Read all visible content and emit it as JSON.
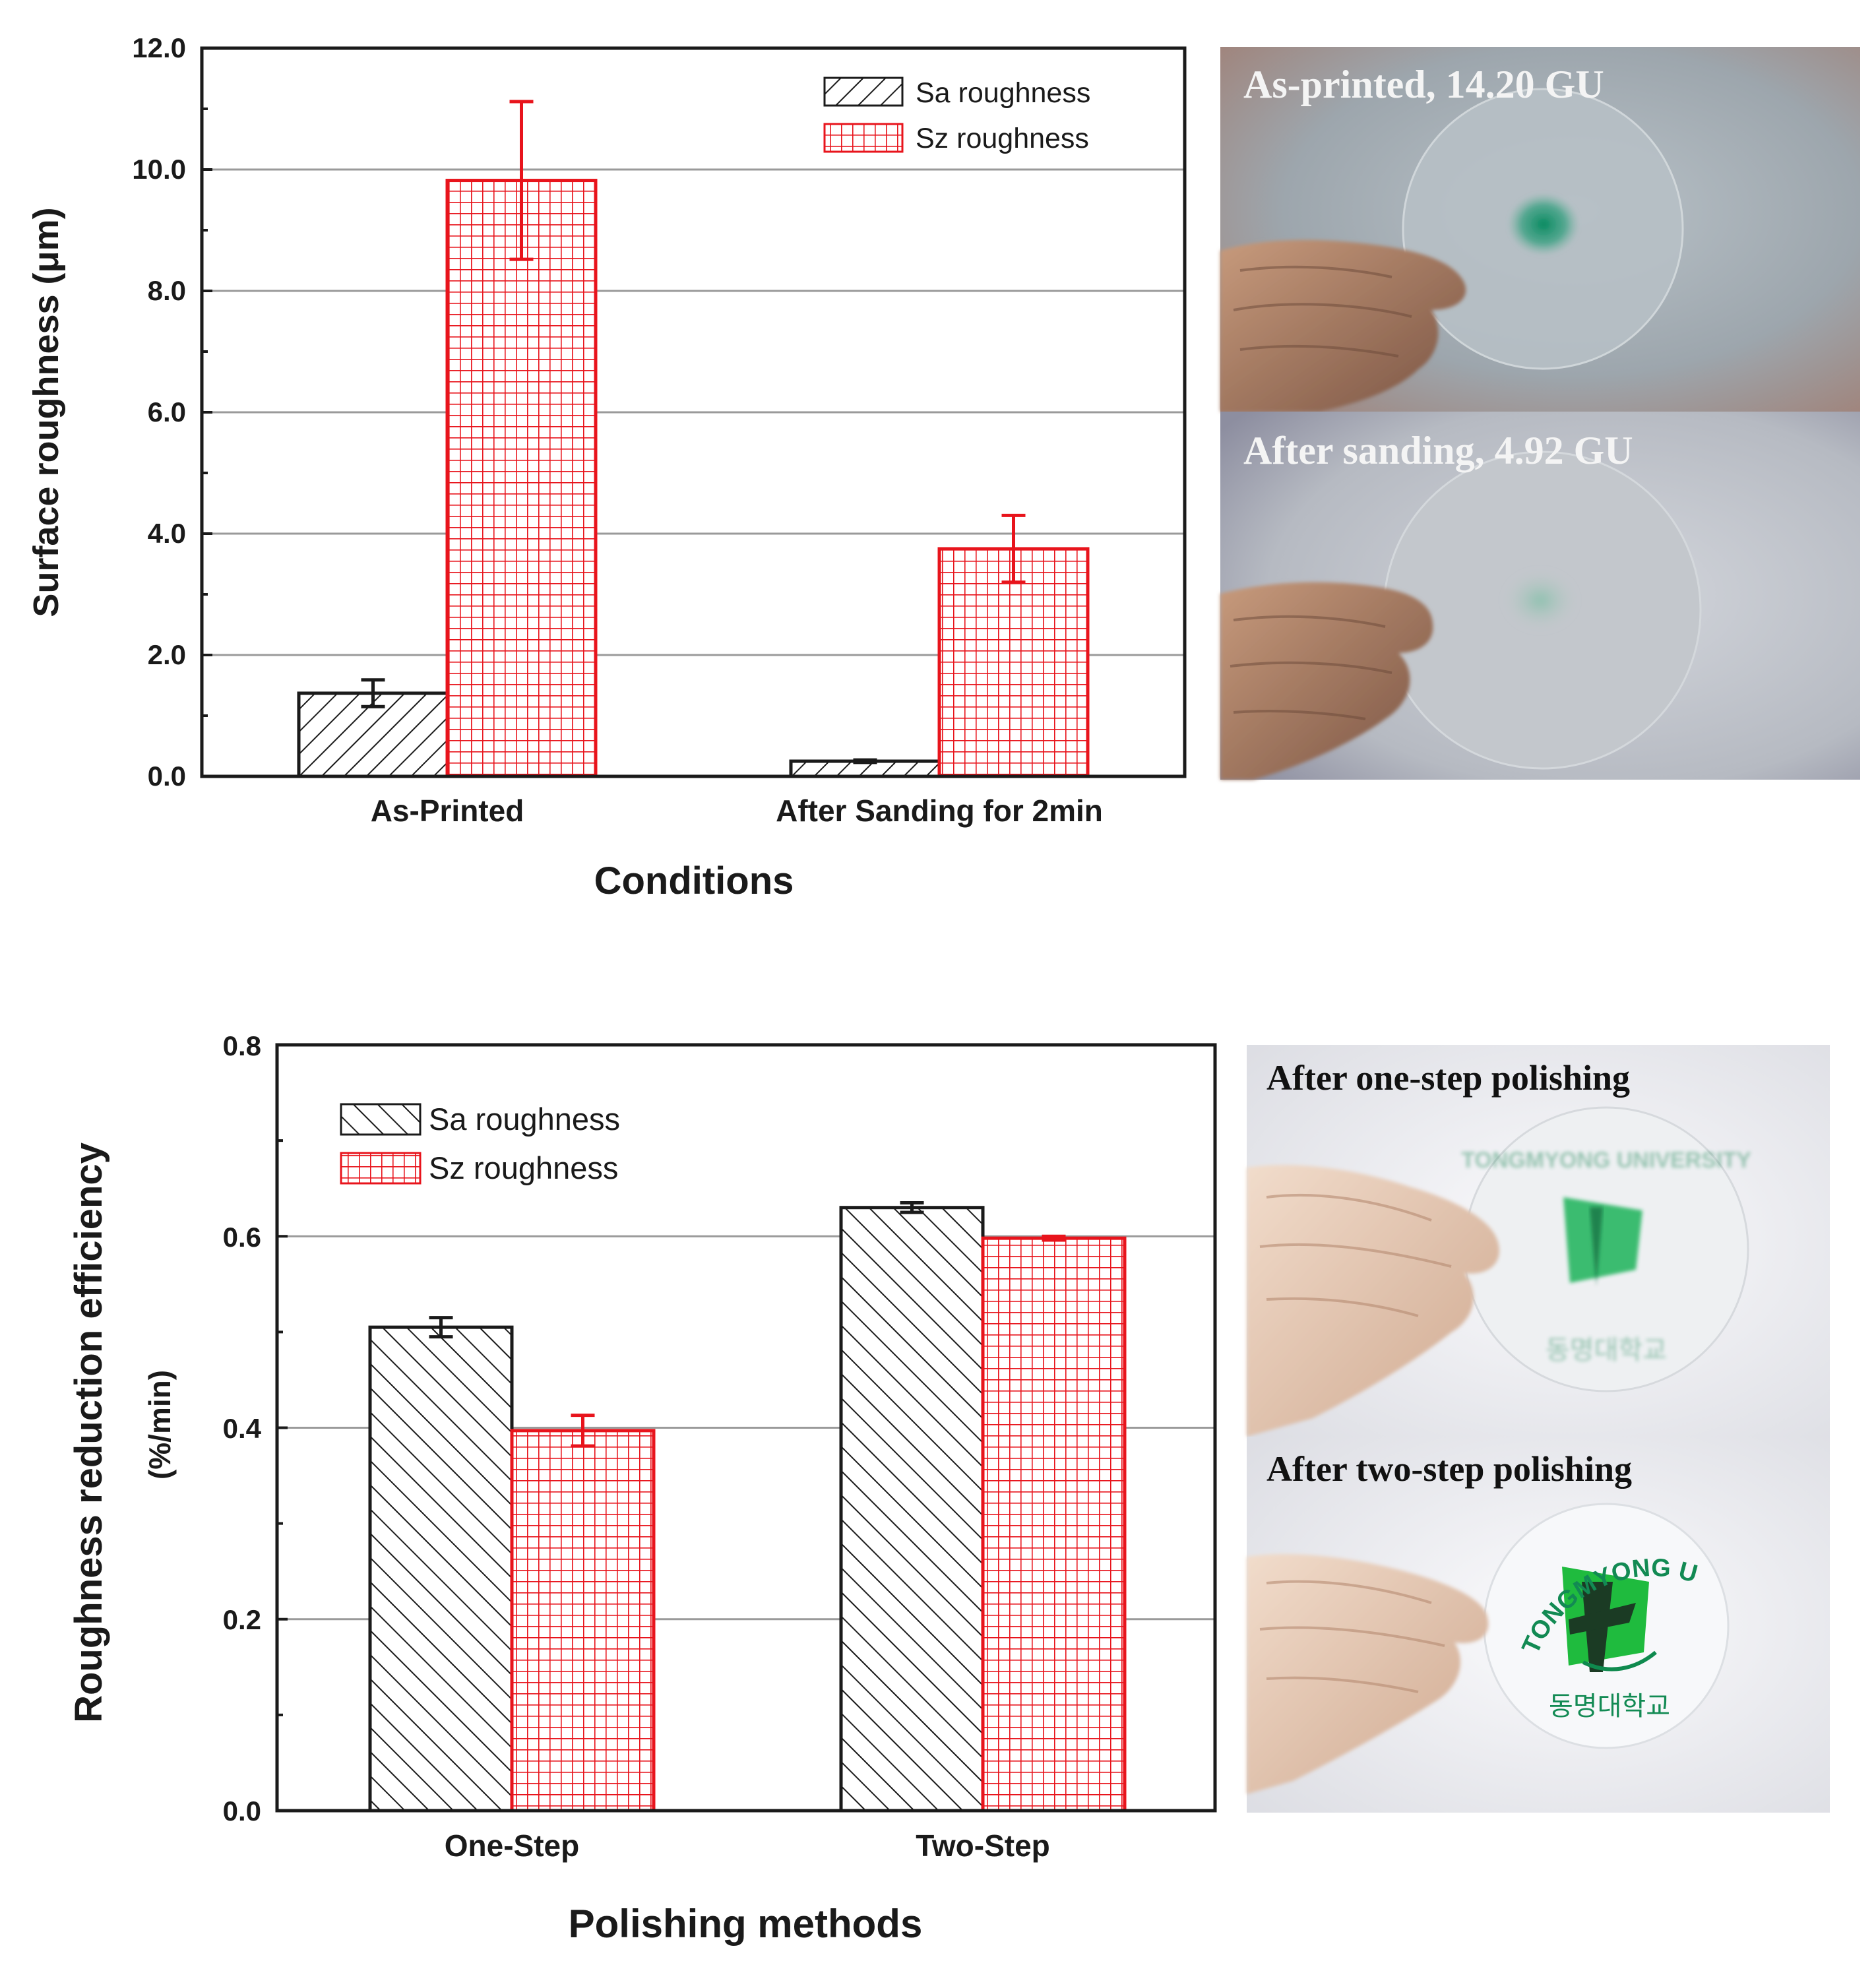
{
  "chart_data": [
    {
      "type": "bar",
      "title": "",
      "xlabel": "Conditions",
      "ylabel": "Surface roughness (μm)",
      "ylim": [
        0,
        12
      ],
      "yticks": [
        "0.0",
        "2.0",
        "4.0",
        "6.0",
        "8.0",
        "10.0",
        "12.0"
      ],
      "categories": [
        "As-Printed",
        "After Sanding for 2min"
      ],
      "series": [
        {
          "name": "Sa roughness",
          "values": [
            1.37,
            0.25
          ],
          "errors": [
            0.22,
            0.02
          ],
          "color": "#1a1a1a",
          "pattern": "hatch"
        },
        {
          "name": "Sz roughness",
          "values": [
            9.82,
            3.75
          ],
          "errors": [
            1.3,
            0.55
          ],
          "color": "#e8141c",
          "pattern": "grid"
        }
      ],
      "legend": "top-right",
      "grid": true
    },
    {
      "type": "bar",
      "title": "",
      "xlabel": "Polishing methods",
      "ylabel": "Roughness reduction efficiency",
      "ylabel2": "(%/min)",
      "ylim": [
        0,
        0.8
      ],
      "yticks": [
        "0.0",
        "0.2",
        "0.4",
        "0.6",
        "0.8"
      ],
      "categories": [
        "One-Step",
        "Two-Step"
      ],
      "series": [
        {
          "name": "Sa roughness",
          "values": [
            0.505,
            0.63
          ],
          "errors": [
            0.01,
            0.005
          ],
          "color": "#1a1a1a",
          "pattern": "hatch"
        },
        {
          "name": "Sz roughness",
          "values": [
            0.397,
            0.598
          ],
          "errors": [
            0.016,
            0.002
          ],
          "color": "#e8141c",
          "pattern": "grid"
        }
      ],
      "legend": "top-left",
      "grid": true
    }
  ],
  "photos": {
    "as_printed": "As-printed, 14.20 GU",
    "after_sanding": "After sanding, 4.92 GU",
    "one_step": "After one-step polishing",
    "two_step": "After two-step polishing"
  },
  "logo": {
    "top_text": "TONGMYONG UNIVERSITY",
    "bottom_text": "동명대학교",
    "brand_color": "#19b34a"
  }
}
